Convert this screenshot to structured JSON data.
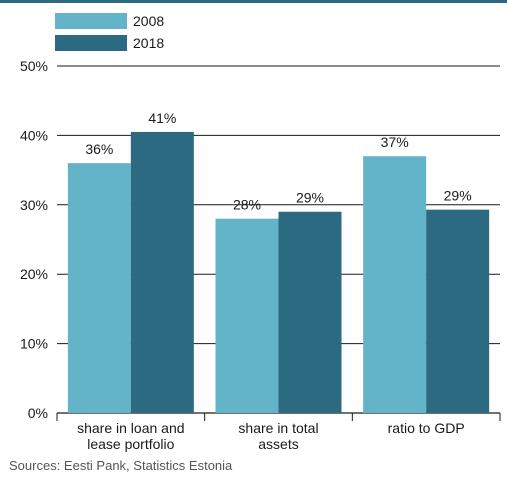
{
  "chart_data": {
    "type": "bar",
    "categories": [
      "share in loan and lease portfolio",
      "share in total assets",
      "ratio to GDP"
    ],
    "category_lines": [
      [
        "share in loan and",
        "lease portfolio"
      ],
      [
        "share in total",
        "assets"
      ],
      [
        "ratio to GDP"
      ]
    ],
    "series": [
      {
        "name": "2008",
        "values": [
          36,
          28,
          37
        ],
        "labels": [
          "36%",
          "28%",
          "37%"
        ],
        "color": "#63b4c8"
      },
      {
        "name": "2018",
        "values": [
          40.5,
          29,
          29.3
        ],
        "labels": [
          "41%",
          "29%",
          "29%"
        ],
        "color": "#2b6a80"
      }
    ],
    "ylim": [
      0,
      50
    ],
    "yticks": [
      0,
      10,
      20,
      30,
      40,
      50
    ],
    "ytick_labels": [
      "0%",
      "10%",
      "20%",
      "30%",
      "40%",
      "50%"
    ],
    "grid": true,
    "legend": "top-left",
    "source": "Sources: Eesti Pank, Statistics Estonia"
  }
}
